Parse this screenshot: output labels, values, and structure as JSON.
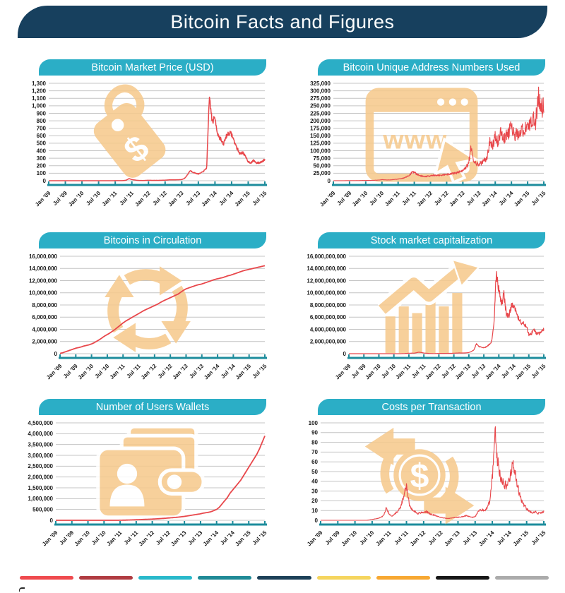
{
  "page": {
    "title": "Bitcoin Facts and Figures"
  },
  "style": {
    "banner_bg": "#17405E",
    "header_bg": "#2BAEC6",
    "axis_color": "#1D8C9C",
    "grid_color": "#C4C4C4",
    "line_color": "#E8474B",
    "icon_color": "#F6CA8E",
    "label_color": "#1A1A1A"
  },
  "x_labels": [
    "Jan '09",
    "Jul '09",
    "Jan '10",
    "Jul '10",
    "Jan '11",
    "Jul '11",
    "Jan '12",
    "Jul '12",
    "Jan '13",
    "Jul '13",
    "Jan '14",
    "Jul '14",
    "Jan '15",
    "Jul '15"
  ],
  "chart_data": [
    {
      "type": "line",
      "title": "Bitcoin Market Price (USD)",
      "icon": "price-tag-icon",
      "x_unit": "monthly, Jan 2009 - Jul 2015",
      "ymax": 1300,
      "y_labels": [
        "1,300",
        "1,200",
        "1,100",
        "1,000",
        "900",
        "800",
        "700",
        "600",
        "500",
        "400",
        "300",
        "200",
        "100",
        "0"
      ],
      "noise": 0.05,
      "values": [
        0,
        0,
        0,
        0,
        0,
        0,
        0,
        0,
        0,
        0,
        0,
        0,
        0,
        0,
        0,
        0,
        0,
        0.1,
        0.1,
        0.1,
        0.1,
        0.2,
        0.3,
        0.3,
        0.5,
        1,
        0.9,
        1.8,
        8,
        28,
        15,
        10,
        5,
        3.5,
        3,
        4.5,
        6,
        5,
        5,
        5,
        5.2,
        6.5,
        8,
        10,
        12,
        11.5,
        12.5,
        13.5,
        15,
        30,
        75,
        135,
        115,
        100,
        90,
        105,
        130,
        170,
        1130,
        780,
        840,
        620,
        560,
        480,
        590,
        640,
        620,
        520,
        430,
        360,
        380,
        320,
        255,
        240,
        270,
        235,
        240,
        255,
        285
      ]
    },
    {
      "type": "line",
      "title": "Bitcoin Unique Address Numbers Used",
      "icon": "browser-www-icon",
      "x_unit": "monthly, Jan 2009 - Jul 2015",
      "ymax": 325000,
      "y_labels": [
        "325,000",
        "300,000",
        "275,000",
        "250,000",
        "225,000",
        "200,000",
        "175,000",
        "150,000",
        "125,000",
        "100,000",
        "75,000",
        "50,000",
        "25,000",
        "0"
      ],
      "noise": 0.14,
      "values": [
        100,
        150,
        200,
        250,
        300,
        350,
        400,
        450,
        500,
        550,
        650,
        800,
        900,
        1000,
        1200,
        1500,
        1800,
        2200,
        3500,
        3000,
        2500,
        2600,
        3500,
        4500,
        5500,
        7000,
        9000,
        12000,
        17000,
        27000,
        29000,
        21000,
        17000,
        15000,
        14000,
        15000,
        16000,
        17500,
        17000,
        18000,
        19000,
        20000,
        21000,
        22000,
        23500,
        25000,
        27000,
        30000,
        35000,
        42000,
        55000,
        105000,
        70000,
        58000,
        56000,
        60000,
        68000,
        78000,
        130000,
        115000,
        150000,
        130000,
        160000,
        140000,
        150000,
        160000,
        185000,
        150000,
        160000,
        148000,
        168000,
        175000,
        180000,
        188000,
        205000,
        195000,
        290000,
        235000,
        255000
      ]
    },
    {
      "type": "line",
      "title": "Bitcoins in Circulation",
      "icon": "circulation-arrows-icon",
      "x_unit": "monthly, Jan 2009 - Jul 2015",
      "ymax": 16000000,
      "y_labels": [
        "16,000,000",
        "14,000,000",
        "12,000,000",
        "10,000,000",
        "8,000,000",
        "6,000,000",
        "4,000,000",
        "2,000,000",
        "0"
      ],
      "noise": 0,
      "values": [
        50000,
        150000,
        300000,
        450000,
        600000,
        750000,
        900000,
        1000000,
        1100000,
        1250000,
        1350000,
        1450000,
        1600000,
        1800000,
        2050000,
        2300000,
        2600000,
        2900000,
        3150000,
        3400000,
        3700000,
        4000000,
        4350000,
        4700000,
        5050000,
        5350000,
        5600000,
        5850000,
        6100000,
        6350000,
        6600000,
        6850000,
        7100000,
        7300000,
        7500000,
        7700000,
        7900000,
        8100000,
        8350000,
        8600000,
        8800000,
        9000000,
        9200000,
        9400000,
        9600000,
        9800000,
        10100000,
        10400000,
        10650000,
        10800000,
        10950000,
        11100000,
        11250000,
        11350000,
        11450000,
        11600000,
        11750000,
        11900000,
        12050000,
        12200000,
        12300000,
        12400000,
        12500000,
        12650000,
        12800000,
        12900000,
        13050000,
        13200000,
        13350000,
        13500000,
        13650000,
        13750000,
        13850000,
        13950000,
        14050000,
        14150000,
        14250000,
        14350000,
        14450000
      ]
    },
    {
      "type": "line",
      "title": "Stock market capitalization",
      "icon": "bar-chart-growth-icon",
      "x_unit": "monthly, Jan 2009 - Jul 2015",
      "ymax": 16000000000,
      "y_labels": [
        "16,000,000,000",
        "14,000,000,000",
        "12,000,000,000",
        "10,000,000,000",
        "8,000,000,000",
        "6,000,000,000",
        "4,000,000,000",
        "2,000,000,000",
        "0"
      ],
      "noise": 0.08,
      "values": [
        0,
        0,
        0,
        0,
        0,
        0,
        0,
        0,
        0,
        0,
        0,
        0,
        0,
        0,
        0,
        0,
        0,
        0,
        1000000.0,
        2000000.0,
        3000000.0,
        5000000.0,
        20000000.0,
        50000000.0,
        70000000.0,
        90000000.0,
        80000000.0,
        150000000.0,
        250000000.0,
        190000000.0,
        110000000.0,
        70000000.0,
        45000000.0,
        30000000.0,
        25000000.0,
        35000000.0,
        45000000.0,
        46000000.0,
        48000000.0,
        50000000.0,
        52000000.0,
        60000000.0,
        75000000.0,
        95000000.0,
        115000000.0,
        110000000.0,
        120000000.0,
        140000000.0,
        180000000.0,
        350000000.0,
        600000000.0,
        1600000000.0,
        1200000000.0,
        1050000000.0,
        950000000.0,
        1150000000.0,
        1450000000.0,
        1900000000.0,
        4500000000.0,
        13500000000.0,
        10500000000.0,
        8200000000.0,
        9800000000.0,
        6600000000.0,
        6300000000.0,
        7800000000.0,
        8100000000.0,
        6600000000.0,
        5600000000.0,
        4800000000.0,
        5100000000.0,
        4400000000.0,
        3200000000.0,
        3300000000.0,
        3900000000.0,
        3400000000.0,
        3300000000.0,
        3500000000.0,
        4100000000.0
      ]
    },
    {
      "type": "line",
      "title": "Number of Users Wallets",
      "icon": "wallet-user-icon",
      "x_unit": "monthly, Jan 2009 - Jul 2015",
      "ymax": 4500000,
      "y_labels": [
        "4,500,000",
        "4,000,000",
        "3,500,000",
        "3,000,000",
        "2,500,000",
        "2,000,000",
        "1,500,000",
        "1,000,000",
        "500,000",
        "0"
      ],
      "noise": 0,
      "values": [
        0,
        0,
        0,
        0,
        0,
        0,
        0,
        0,
        0,
        0,
        0,
        0,
        0,
        0,
        0,
        0,
        0,
        0,
        0,
        0,
        0,
        0,
        0,
        0,
        3000,
        5000,
        8000,
        12000,
        16000,
        20000,
        25000,
        30000,
        35000,
        40000,
        45000,
        50000,
        55000,
        62000,
        70000,
        78000,
        87000,
        96000,
        106000,
        116000,
        127000,
        138000,
        150000,
        165000,
        180000,
        200000,
        220000,
        240000,
        260000,
        280000,
        300000,
        330000,
        350000,
        370000,
        400000,
        450000,
        500000,
        600000,
        750000,
        900000,
        1050000,
        1250000,
        1400000,
        1550000,
        1700000,
        1850000,
        2050000,
        2250000,
        2450000,
        2650000,
        2850000,
        3050000,
        3300000,
        3600000,
        3900000
      ]
    },
    {
      "type": "line",
      "title": "Costs per Transaction",
      "icon": "currency-exchange-icon",
      "x_unit": "monthly, Jan 2009 - Jul 2015",
      "ymax": 100,
      "y_labels": [
        "100",
        "90",
        "80",
        "70",
        "60",
        "50",
        "40",
        "30",
        "20",
        "10",
        "0"
      ],
      "noise": 0.13,
      "values": [
        0,
        0,
        0,
        0,
        0,
        0,
        0,
        0,
        0,
        0,
        0,
        0,
        0,
        0,
        0,
        0,
        0,
        0.3,
        0.8,
        1.5,
        2,
        3,
        5,
        13,
        6,
        4,
        7,
        9,
        14,
        25,
        35,
        16,
        11,
        9,
        7,
        8,
        8,
        9,
        7,
        6,
        5,
        4,
        3,
        2.5,
        2,
        2,
        2.5,
        3,
        3,
        3.5,
        4,
        5,
        4,
        3,
        3.5,
        9,
        11,
        10,
        12,
        18,
        45,
        88,
        58,
        42,
        38,
        35,
        40,
        56,
        50,
        32,
        22,
        16,
        12,
        9,
        8,
        9,
        7,
        8,
        9
      ]
    }
  ],
  "footer": {
    "palette": [
      "#EF4A4E",
      "#B03B41",
      "#29B9CB",
      "#1F8A96",
      "#1C4058",
      "#F5D55E",
      "#F7A832",
      "#161616",
      "#ABABAB"
    ]
  }
}
